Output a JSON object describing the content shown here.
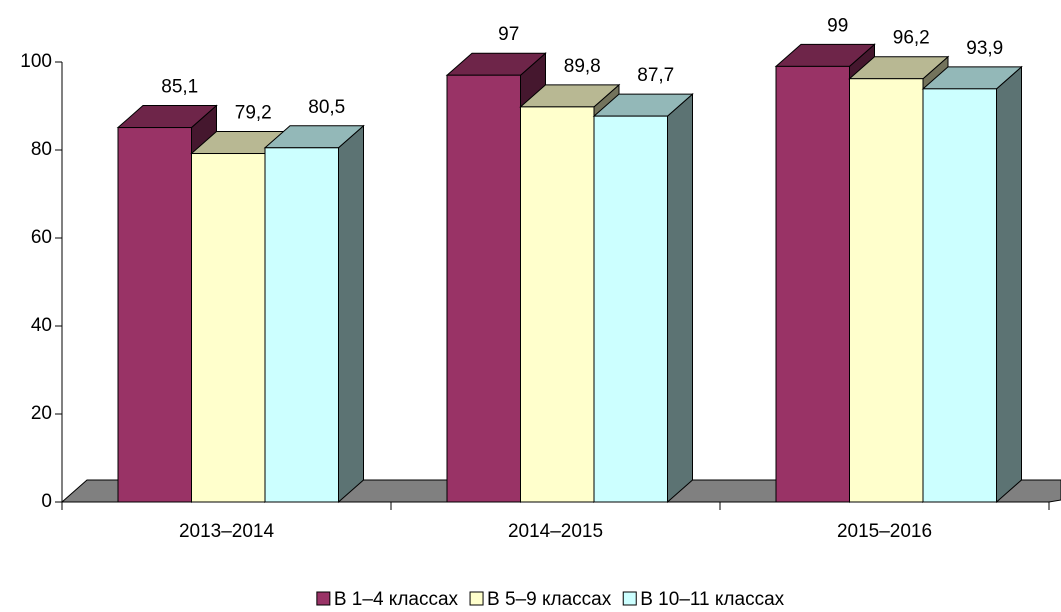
{
  "chart_data": {
    "type": "bar3d",
    "categories": [
      "2013–2014",
      "2014–2015",
      "2015–2016"
    ],
    "series": [
      {
        "name": "В 1–4 классах",
        "color": "#993366",
        "values": [
          85.1,
          97,
          99
        ],
        "value_labels": [
          "85,1",
          "97",
          "99"
        ]
      },
      {
        "name": "В 5–9 классах",
        "color": "#FFFFCC",
        "values": [
          79.2,
          89.8,
          96.2
        ],
        "value_labels": [
          "79,2",
          "89,8",
          "96,2"
        ]
      },
      {
        "name": "В 10–11 классах",
        "color": "#CCFFFF",
        "values": [
          80.5,
          87.7,
          93.9
        ],
        "value_labels": [
          "80,5",
          "87,7",
          "93,9"
        ]
      }
    ],
    "ylim": [
      0,
      100
    ],
    "yticks": [
      0,
      20,
      40,
      60,
      80,
      100
    ],
    "legend": "bottom"
  }
}
